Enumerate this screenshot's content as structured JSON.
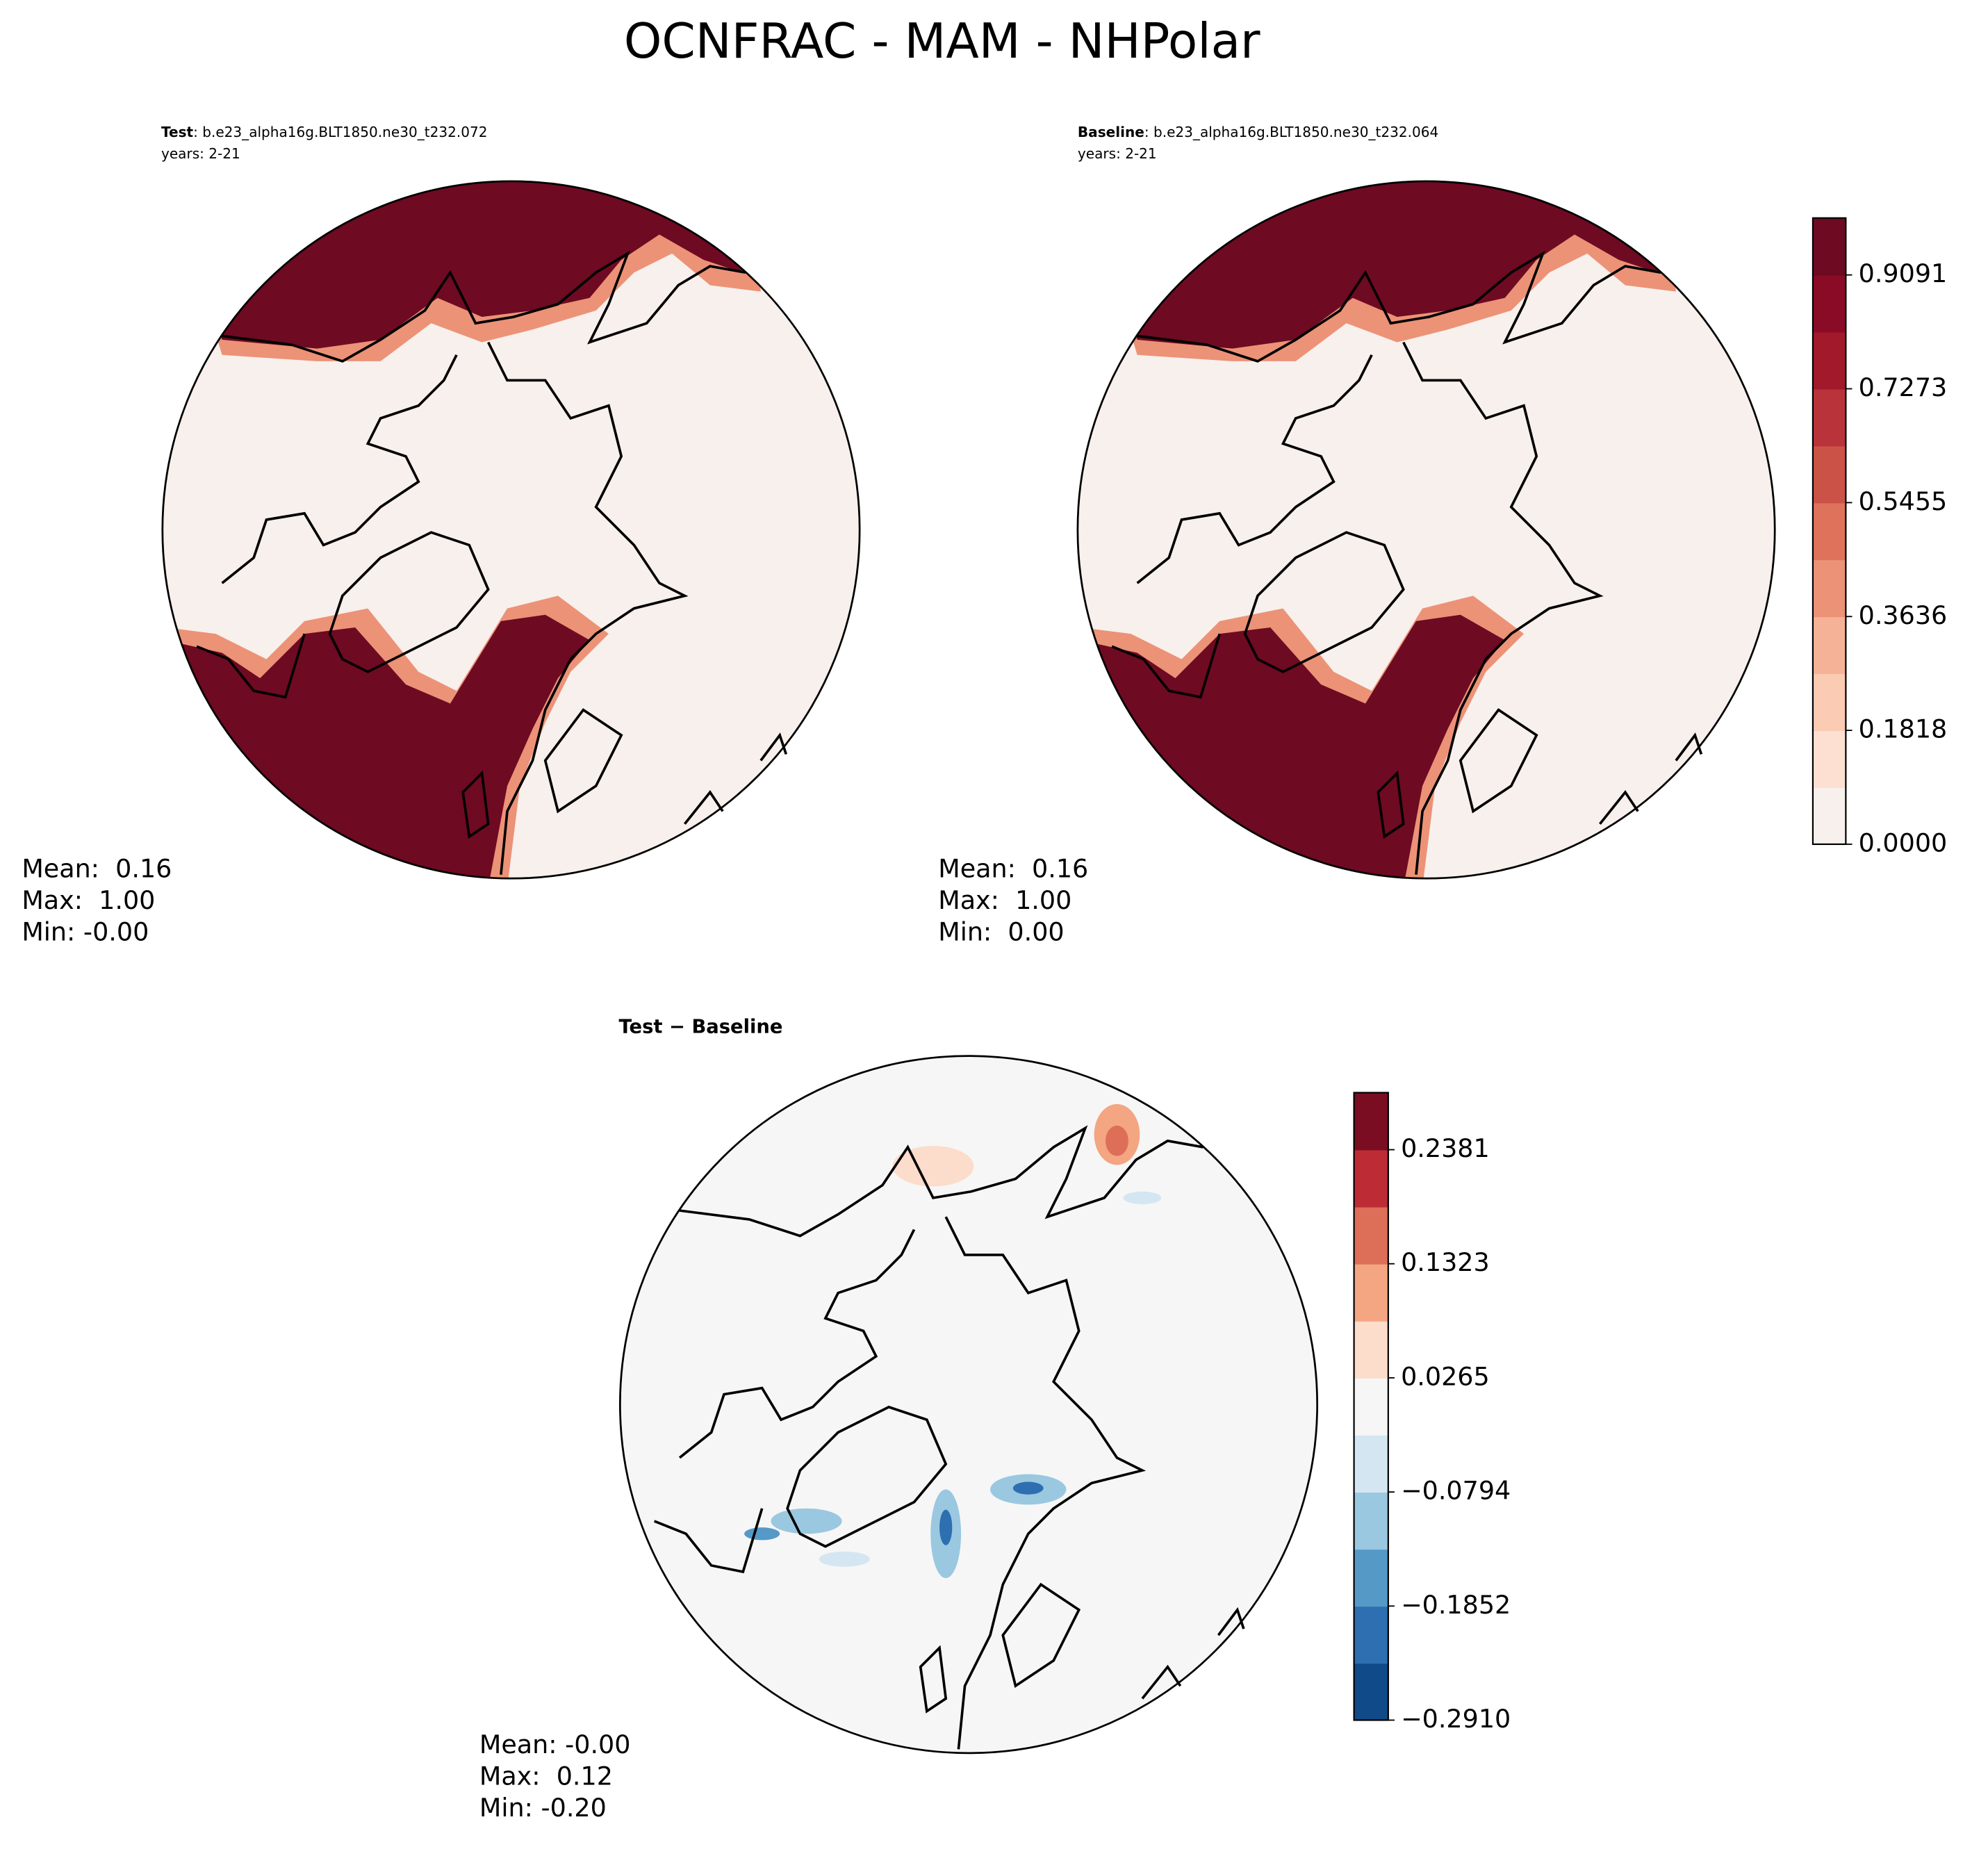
{
  "title": "OCNFRAC - MAM - NHPolar",
  "panels": [
    {
      "label": "Test",
      "case": ": b.e23_alpha16g.BLT1850.ne30_t232.072",
      "years": "years: 2-21",
      "stats": [
        "Mean:  0.16",
        "Max:  1.00",
        "Min: -0.00"
      ]
    },
    {
      "label": "Baseline",
      "case": ": b.e23_alpha16g.BLT1850.ne30_t232.064",
      "years": "years: 2-21",
      "stats": [
        "Mean:  0.16",
        "Max:  1.00",
        "Min:  0.00"
      ]
    },
    {
      "label": "Test − Baseline",
      "stats": [
        "Mean: -0.00",
        "Max:  0.12",
        "Min: -0.20"
      ]
    }
  ],
  "colorbars": [
    {
      "lim": [
        0,
        1.0
      ],
      "colors": [
        "#f7f0ec",
        "#fde0d2",
        "#fbcbb4",
        "#f6b296",
        "#ec9277",
        "#de725b",
        "#cb5247",
        "#b8333a",
        "#a2192b",
        "#8a0b25",
        "#6e0a22"
      ],
      "ticks": [
        {
          "value": 0,
          "label": "0.0000"
        },
        {
          "value": 0.1818,
          "label": "0.1818"
        },
        {
          "value": 0.3636,
          "label": "0.3636"
        },
        {
          "value": 0.5455,
          "label": "0.5455"
        },
        {
          "value": 0.7273,
          "label": "0.7273"
        },
        {
          "value": 0.9091,
          "label": "0.9091"
        }
      ]
    },
    {
      "lim": [
        -0.291,
        0.291
      ],
      "colors": [
        "#114a88",
        "#2d6fb0",
        "#5599c7",
        "#9ac8e0",
        "#d4e6f1",
        "#f6f6f6",
        "#fcdccb",
        "#f4a582",
        "#dd6e58",
        "#bd2c35",
        "#7b0d22"
      ],
      "ticks": [
        {
          "value": -0.291,
          "label": "−0.2910"
        },
        {
          "value": -0.1852,
          "label": "−0.1852"
        },
        {
          "value": -0.0794,
          "label": "−0.0794"
        },
        {
          "value": 0.0265,
          "label": "0.0265"
        },
        {
          "value": 0.1323,
          "label": "0.1323"
        },
        {
          "value": 0.2381,
          "label": "0.2381"
        }
      ]
    }
  ]
}
